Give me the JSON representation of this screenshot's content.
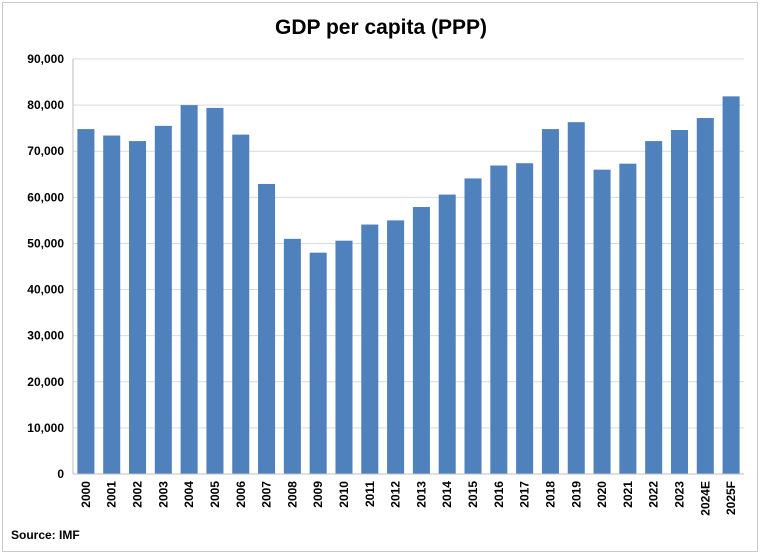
{
  "chart_data": {
    "type": "bar",
    "title": "GDP per capita (PPP)",
    "source": "Source: IMF",
    "xlabel": "",
    "ylabel": "",
    "ylim": [
      0,
      90000
    ],
    "yticks": [
      "0",
      "10,000",
      "20,000",
      "30,000",
      "40,000",
      "50,000",
      "60,000",
      "70,000",
      "80,000",
      "90,000"
    ],
    "grid": true,
    "legend": "none",
    "bar_color": "#4f81bd",
    "categories": [
      "2000",
      "2001",
      "2002",
      "2003",
      "2004",
      "2005",
      "2006",
      "2007",
      "2008",
      "2009",
      "2010",
      "2011",
      "2012",
      "2013",
      "2014",
      "2015",
      "2016",
      "2017",
      "2018",
      "2019",
      "2020",
      "2021",
      "2022",
      "2023",
      "2024E",
      "2025F"
    ],
    "values": [
      74800,
      73400,
      72200,
      75500,
      80000,
      79400,
      73600,
      62900,
      51000,
      48000,
      50600,
      54100,
      55000,
      57900,
      60600,
      64100,
      66900,
      67400,
      74800,
      76300,
      66000,
      67300,
      72200,
      74600,
      77200,
      81900
    ]
  }
}
